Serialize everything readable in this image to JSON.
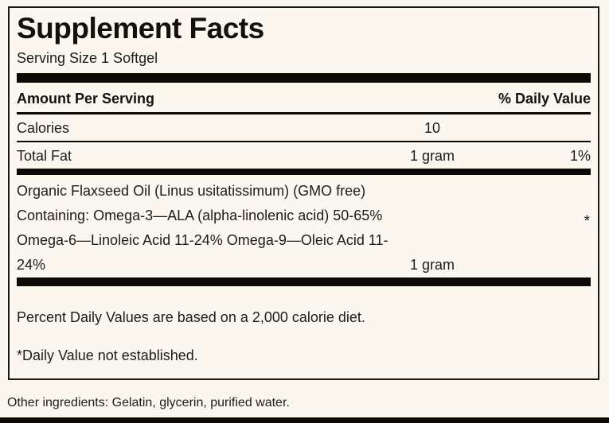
{
  "label": {
    "title": "Supplement Facts",
    "serving_size": "Serving Size 1 Softgel",
    "header": {
      "amount_per_serving": "Amount Per Serving",
      "percent_daily_value": "% Daily Value"
    },
    "rows": [
      {
        "name": "Calories",
        "amount": "10",
        "dv": ""
      },
      {
        "name": "Total Fat",
        "amount": "1 gram",
        "dv": "1%"
      }
    ],
    "ingredient": {
      "lines": [
        "Organic Flaxseed Oil (Linus usitatissimum) (GMO free)",
        "Containing: Omega-3—ALA (alpha-linolenic acid) 50-65%",
        "Omega-6—Linoleic Acid 11-24% Omega-9—Oleic Acid 11-",
        "24%"
      ],
      "amount": "1 gram",
      "dv_symbol": "*"
    },
    "footnotes": {
      "daily_values": "Percent Daily Values are based on a 2,000 calorie diet.",
      "not_established": "*Daily Value not established."
    },
    "other_ingredients": "Other ingredients: Gelatin, glycerin, purified water."
  },
  "colors": {
    "background": "#fbf6ee",
    "text": "#1f1b15",
    "bar": "#0c0a07"
  }
}
